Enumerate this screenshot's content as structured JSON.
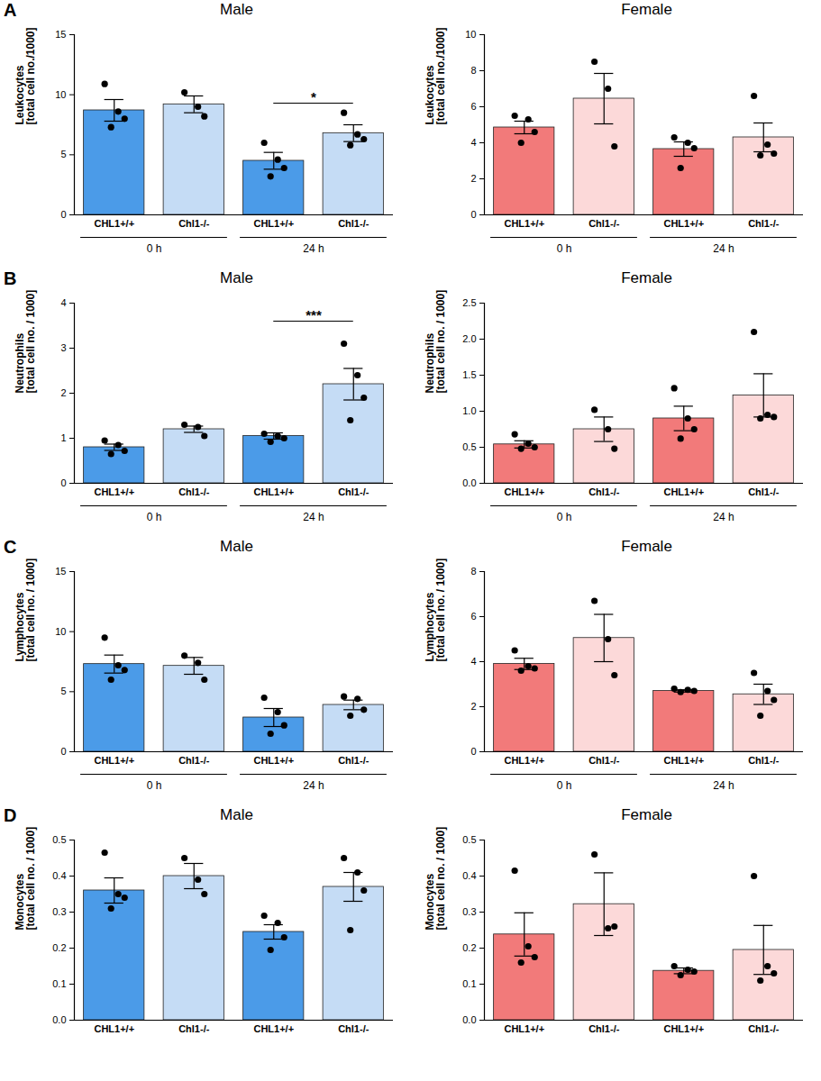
{
  "chart_data": [
    {
      "type": "bar",
      "panel": "A",
      "title": "Male",
      "ylabel": "Leukocytes\n[total cell no./1000]",
      "categories": [
        "CHL1+/+",
        "Chl1-/-",
        "CHL1+/+",
        "Chl1-/-"
      ],
      "groups": [
        {
          "label": "0 h",
          "from": 0,
          "to": 1
        },
        {
          "label": "24 h",
          "from": 2,
          "to": 3
        }
      ],
      "values": [
        8.7,
        9.2,
        4.5,
        6.8
      ],
      "errors": [
        0.9,
        0.7,
        0.7,
        0.7
      ],
      "points": [
        [
          10.9,
          8.6,
          8.0,
          7.3
        ],
        [
          10.2,
          9.0,
          8.2
        ],
        [
          6.0,
          4.6,
          3.9,
          3.2
        ],
        [
          8.5,
          6.7,
          6.3,
          5.8
        ]
      ],
      "colors": [
        "#4b9be8",
        "#c5dcf5",
        "#4b9be8",
        "#c5dcf5"
      ],
      "annotations": [
        {
          "text": "*",
          "from": 2,
          "to": 3,
          "y": 9.3
        }
      ],
      "ylim": [
        0,
        15
      ],
      "yticks": [
        0,
        5,
        10,
        15
      ]
    },
    {
      "type": "bar",
      "title": "Female",
      "ylabel": "Leukocytes\n[total cell no./1000]",
      "categories": [
        "CHL1+/+",
        "Chl1-/-",
        "CHL1+/+",
        "Chl1-/-"
      ],
      "groups": [
        {
          "label": "0 h",
          "from": 0,
          "to": 1
        },
        {
          "label": "24 h",
          "from": 2,
          "to": 3
        }
      ],
      "values": [
        4.85,
        6.45,
        3.65,
        4.3
      ],
      "errors": [
        0.35,
        1.4,
        0.4,
        0.8
      ],
      "points": [
        [
          5.5,
          5.3,
          4.6,
          4.0
        ],
        [
          8.5,
          7.0,
          3.8
        ],
        [
          4.3,
          4.0,
          3.7,
          2.6
        ],
        [
          6.6,
          3.9,
          3.4,
          3.3
        ]
      ],
      "colors": [
        "#f27a7a",
        "#fcd9d9",
        "#f27a7a",
        "#fcd9d9"
      ],
      "annotations": [],
      "ylim": [
        0,
        10
      ],
      "yticks": [
        0,
        2,
        4,
        6,
        8,
        10
      ]
    },
    {
      "type": "bar",
      "panel": "B",
      "title": "Male",
      "ylabel": "Neutrophils\n[total cell no. / 1000]",
      "categories": [
        "CHL1+/+",
        "Chl1-/-",
        "CHL1+/+",
        "Chl1-/-"
      ],
      "groups": [
        {
          "label": "0 h",
          "from": 0,
          "to": 1
        },
        {
          "label": "24 h",
          "from": 2,
          "to": 3
        }
      ],
      "values": [
        0.8,
        1.2,
        1.05,
        2.2
      ],
      "errors": [
        0.07,
        0.07,
        0.07,
        0.35
      ],
      "points": [
        [
          0.95,
          0.85,
          0.72,
          0.65
        ],
        [
          1.3,
          1.25,
          1.05
        ],
        [
          1.1,
          1.05,
          1.0,
          0.92
        ],
        [
          3.1,
          2.4,
          1.9,
          1.4
        ]
      ],
      "colors": [
        "#4b9be8",
        "#c5dcf5",
        "#4b9be8",
        "#c5dcf5"
      ],
      "annotations": [
        {
          "text": "***",
          "from": 2,
          "to": 3,
          "y": 3.6
        }
      ],
      "ylim": [
        0,
        4
      ],
      "yticks": [
        0,
        1,
        2,
        3,
        4
      ]
    },
    {
      "type": "bar",
      "title": "Female",
      "ylabel": "Neutrophils\n[total cell no. / 1000]",
      "categories": [
        "CHL1+/+",
        "Chl1-/-",
        "CHL1+/+",
        "Chl1-/-"
      ],
      "groups": [
        {
          "label": "0 h",
          "from": 0,
          "to": 1
        },
        {
          "label": "24 h",
          "from": 2,
          "to": 3
        }
      ],
      "values": [
        0.54,
        0.75,
        0.9,
        1.22
      ],
      "errors": [
        0.05,
        0.17,
        0.17,
        0.3
      ],
      "points": [
        [
          0.68,
          0.55,
          0.5,
          0.48
        ],
        [
          1.02,
          0.75,
          0.48
        ],
        [
          1.32,
          0.9,
          0.75,
          0.62
        ],
        [
          2.1,
          0.95,
          0.92,
          0.9
        ]
      ],
      "colors": [
        "#f27a7a",
        "#fcd9d9",
        "#f27a7a",
        "#fcd9d9"
      ],
      "annotations": [],
      "ylim": [
        0,
        2.5
      ],
      "yticks": [
        {
          "value": 0,
          "label": "0.0"
        },
        0.5,
        {
          "value": 1,
          "label": "1.0"
        },
        1.5,
        {
          "value": 2,
          "label": "2.0"
        },
        2.5
      ]
    },
    {
      "type": "bar",
      "panel": "C",
      "title": "Male",
      "ylabel": "Lymphocytes\n[total cell no. / 1000]",
      "categories": [
        "CHL1+/+",
        "Chl1-/-",
        "CHL1+/+",
        "Chl1-/-"
      ],
      "groups": [
        {
          "label": "0 h",
          "from": 0,
          "to": 1
        },
        {
          "label": "24 h",
          "from": 2,
          "to": 3
        }
      ],
      "values": [
        7.3,
        7.15,
        2.85,
        3.9
      ],
      "errors": [
        0.75,
        0.7,
        0.75,
        0.4
      ],
      "points": [
        [
          9.5,
          7.2,
          6.8,
          6.0
        ],
        [
          8.0,
          7.4,
          6.0
        ],
        [
          4.5,
          3.3,
          2.2,
          1.5
        ],
        [
          4.6,
          4.4,
          3.5,
          3.0
        ]
      ],
      "colors": [
        "#4b9be8",
        "#c5dcf5",
        "#4b9be8",
        "#c5dcf5"
      ],
      "annotations": [],
      "ylim": [
        0,
        15
      ],
      "yticks": [
        0,
        5,
        10,
        15
      ]
    },
    {
      "type": "bar",
      "title": "Female",
      "ylabel": "Lymphocytes\n[total cell no. / 1000]",
      "categories": [
        "CHL1+/+",
        "Chl1-/-",
        "CHL1+/+",
        "Chl1-/-"
      ],
      "groups": [
        {
          "label": "0 h",
          "from": 0,
          "to": 1
        },
        {
          "label": "24 h",
          "from": 2,
          "to": 3
        }
      ],
      "values": [
        3.9,
        5.05,
        2.7,
        2.55
      ],
      "errors": [
        0.25,
        1.05,
        0.05,
        0.45
      ],
      "points": [
        [
          4.5,
          3.8,
          3.7,
          3.6
        ],
        [
          6.7,
          5.0,
          3.4
        ],
        [
          2.8,
          2.75,
          2.7,
          2.65
        ],
        [
          3.5,
          2.7,
          2.3,
          1.6
        ]
      ],
      "colors": [
        "#f27a7a",
        "#fcd9d9",
        "#f27a7a",
        "#fcd9d9"
      ],
      "annotations": [],
      "ylim": [
        0,
        8
      ],
      "yticks": [
        0,
        2,
        4,
        6,
        8
      ]
    },
    {
      "type": "bar",
      "panel": "D",
      "title": "Male",
      "ylabel": "Monocytes\n[total cell no. / 1000]",
      "categories": [
        "CHL1+/+",
        "Chl1-/-",
        "CHL1+/+",
        "Chl1-/-"
      ],
      "groups": [],
      "values": [
        0.36,
        0.4,
        0.245,
        0.37
      ],
      "errors": [
        0.035,
        0.035,
        0.02,
        0.04
      ],
      "points": [
        [
          0.465,
          0.35,
          0.34,
          0.31
        ],
        [
          0.45,
          0.39,
          0.35
        ],
        [
          0.29,
          0.27,
          0.23,
          0.195
        ],
        [
          0.45,
          0.41,
          0.36,
          0.25
        ]
      ],
      "colors": [
        "#4b9be8",
        "#c5dcf5",
        "#4b9be8",
        "#c5dcf5"
      ],
      "annotations": [],
      "ylim": [
        0,
        0.5
      ],
      "yticks": [
        {
          "value": 0,
          "label": "0.0"
        },
        0.1,
        0.2,
        0.3,
        0.4,
        0.5
      ]
    },
    {
      "type": "bar",
      "title": "Female",
      "ylabel": "Monocytes\n[total cell no. / 1000]",
      "categories": [
        "CHL1+/+",
        "Chl1-/-",
        "CHL1+/+",
        "Chl1-/-"
      ],
      "groups": [],
      "values": [
        0.238,
        0.322,
        0.137,
        0.195
      ],
      "errors": [
        0.06,
        0.087,
        0.008,
        0.068
      ],
      "points": [
        [
          0.415,
          0.205,
          0.175,
          0.16
        ],
        [
          0.46,
          0.255,
          0.26
        ],
        [
          0.15,
          0.14,
          0.135,
          0.125
        ],
        [
          0.4,
          0.15,
          0.13,
          0.11
        ]
      ],
      "colors": [
        "#f27a7a",
        "#fcd9d9",
        "#f27a7a",
        "#fcd9d9"
      ],
      "annotations": [],
      "ylim": [
        0,
        0.5
      ],
      "yticks": [
        {
          "value": 0,
          "label": "0.0"
        },
        0.1,
        0.2,
        0.3,
        0.4,
        0.5
      ]
    }
  ]
}
